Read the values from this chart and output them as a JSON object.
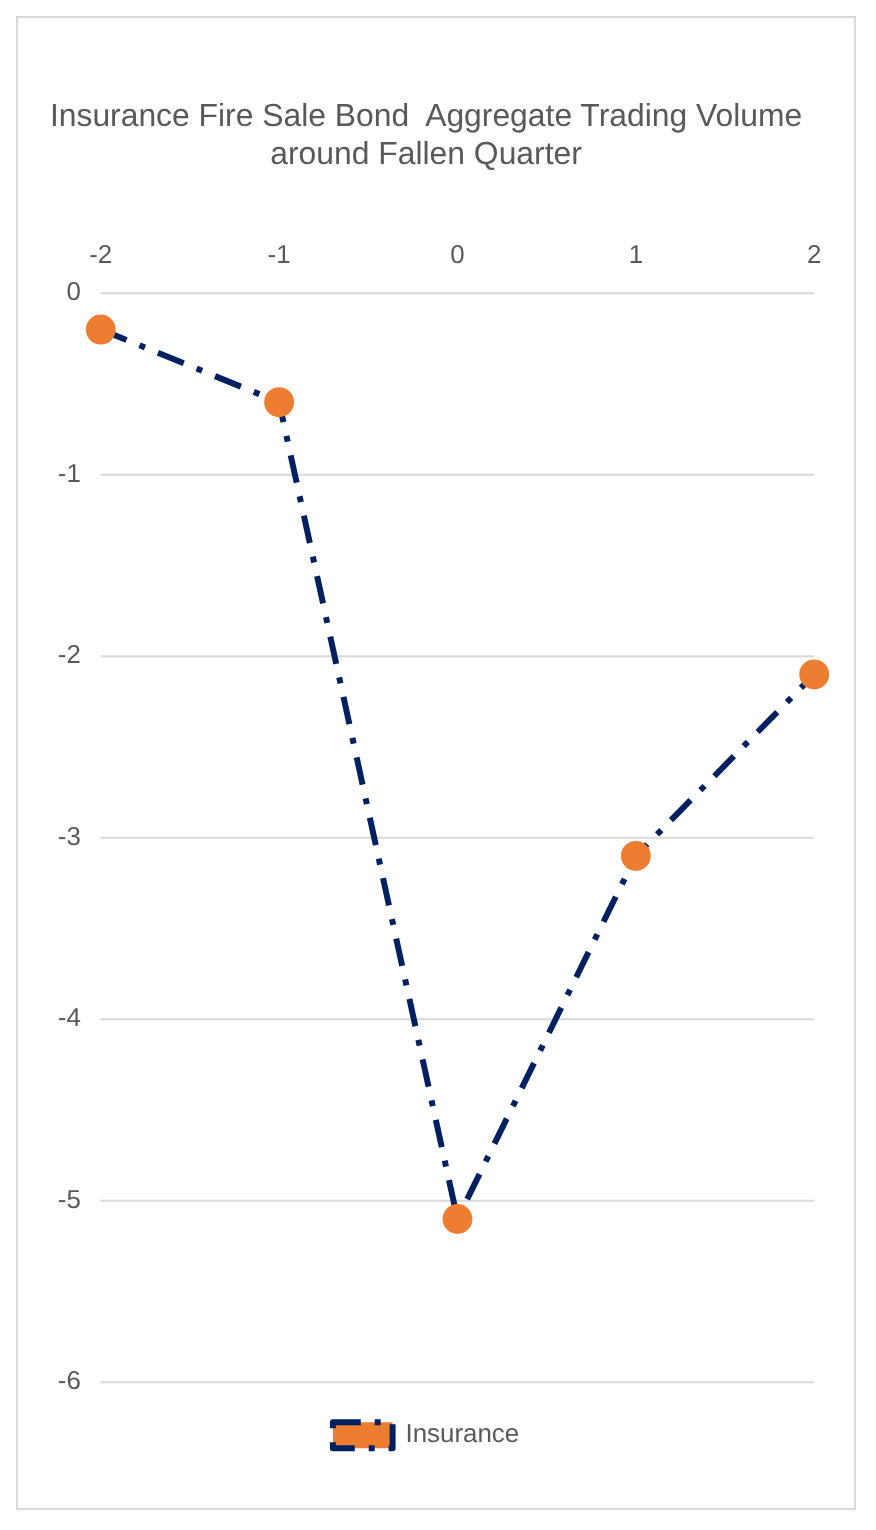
{
  "chart_data": {
    "type": "line",
    "title": [
      "Insurance Fire Sale Bond  Aggregate Trading Volume",
      "around Fallen Quarter"
    ],
    "categories": [
      "-2",
      "-1",
      "0",
      "1",
      "2"
    ],
    "series": [
      {
        "name": "Insurance",
        "color": "#002060",
        "colors": [
          "#ed7d31",
          "#ed7d31",
          "#ed7d31",
          "#ed7d31",
          "#ed7d31"
        ],
        "values": [
          -0.2,
          -0.6,
          -5.1,
          -3.1,
          -2.1
        ]
      }
    ],
    "ylim": [
      -6,
      0
    ],
    "yticks": [
      0,
      -1,
      -2,
      -3,
      -4,
      -5,
      -6
    ],
    "grid": "y",
    "legend": "bottom",
    "marker": "circle",
    "line_style": "dashed"
  }
}
